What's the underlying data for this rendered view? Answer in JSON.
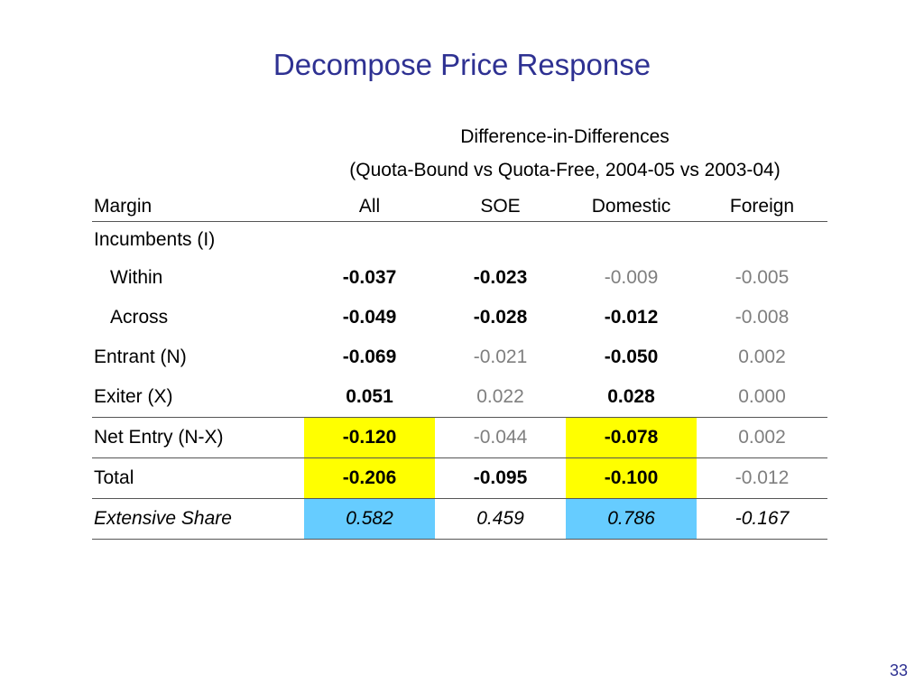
{
  "slide": {
    "title": "Decompose Price Response",
    "page_number": "33"
  },
  "table": {
    "header_line1": "Difference-in-Differences",
    "header_line2": "(Quota-Bound vs Quota-Free, 2004-05 vs 2003-04)",
    "columns": [
      "Margin",
      "All",
      "SOE",
      "Domestic",
      "Foreign"
    ],
    "section_label": "Incumbents (I)",
    "rows": [
      {
        "label": "Within",
        "values": [
          "-0.037",
          "-0.023",
          "-0.009",
          "-0.005"
        ]
      },
      {
        "label": "Across",
        "values": [
          "-0.049",
          "-0.028",
          "-0.012",
          "-0.008"
        ]
      },
      {
        "label": "Entrant (N)",
        "values": [
          "-0.069",
          "-0.021",
          "-0.050",
          "0.002"
        ]
      },
      {
        "label": "Exiter (X)",
        "values": [
          "0.051",
          "0.022",
          "0.028",
          "0.000"
        ]
      },
      {
        "label": "Net Entry (N-X)",
        "values": [
          "-0.120",
          "-0.044",
          "-0.078",
          "0.002"
        ]
      },
      {
        "label": "Total",
        "values": [
          "-0.206",
          "-0.095",
          "-0.100",
          "-0.012"
        ]
      },
      {
        "label": "Extensive Share",
        "values": [
          "0.582",
          "0.459",
          "0.786",
          "-0.167"
        ]
      }
    ],
    "highlight_colors": {
      "yellow": "#ffff00",
      "blue": "#66ccff"
    },
    "title_color": "#2e3192"
  }
}
